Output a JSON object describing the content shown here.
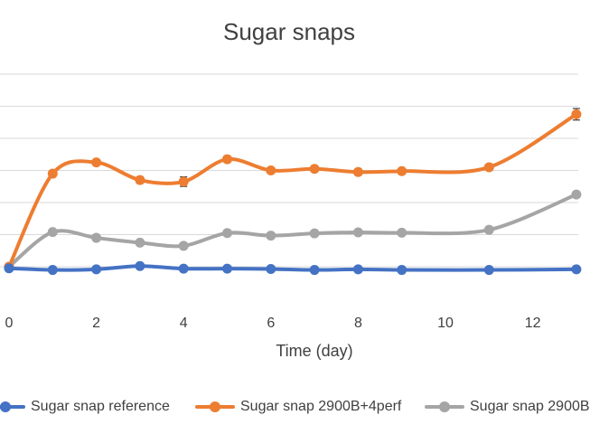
{
  "chart_data": {
    "type": "line",
    "title": "Sugar snaps",
    "xlabel": "Time (day)",
    "ylabel": "",
    "xlim": [
      0,
      13
    ],
    "ylim": [
      -1,
      6
    ],
    "grid": true,
    "y_gridlines": [
      0,
      1,
      2,
      3,
      4,
      5,
      6
    ],
    "x_ticks": [
      0,
      2,
      4,
      6,
      8,
      10,
      12
    ],
    "x_tick_labels": [
      "0",
      "2",
      "4",
      "6",
      "8",
      "10",
      "12"
    ],
    "legend_position": "bottom",
    "series": [
      {
        "name": "Sugar snap reference",
        "color": "#4472C4",
        "x": [
          0,
          1,
          2,
          3,
          4,
          5,
          6,
          7,
          8,
          9,
          11,
          13
        ],
        "values": [
          -0.05,
          -0.1,
          -0.08,
          0.02,
          -0.06,
          -0.06,
          -0.07,
          -0.1,
          -0.08,
          -0.1,
          -0.1,
          -0.08
        ],
        "errors": [
          0,
          0,
          0,
          0,
          0,
          0,
          0,
          0,
          0,
          0,
          0,
          0
        ]
      },
      {
        "name": "Sugar snap 2900B+4perf",
        "color": "#ED7D31",
        "x": [
          0,
          1,
          2,
          3,
          4,
          5,
          6,
          7,
          8,
          9,
          11,
          13
        ],
        "values": [
          0,
          2.9,
          3.25,
          2.7,
          2.65,
          3.35,
          3.0,
          3.05,
          2.95,
          2.98,
          3.1,
          4.75
        ],
        "errors": [
          0,
          0,
          0,
          0.1,
          0.15,
          0.1,
          0,
          0,
          0.1,
          0.05,
          0,
          0.18
        ]
      },
      {
        "name": "Sugar snap 2900B",
        "color": "#A5A5A5",
        "x": [
          0,
          1,
          2,
          3,
          4,
          5,
          6,
          7,
          8,
          9,
          11,
          13
        ],
        "values": [
          0,
          1.08,
          0.9,
          0.75,
          0.65,
          1.05,
          0.97,
          1.04,
          1.07,
          1.06,
          1.15,
          2.25
        ],
        "errors": [
          0,
          0,
          0,
          0,
          0,
          0,
          0,
          0,
          0,
          0,
          0,
          0
        ]
      }
    ]
  }
}
